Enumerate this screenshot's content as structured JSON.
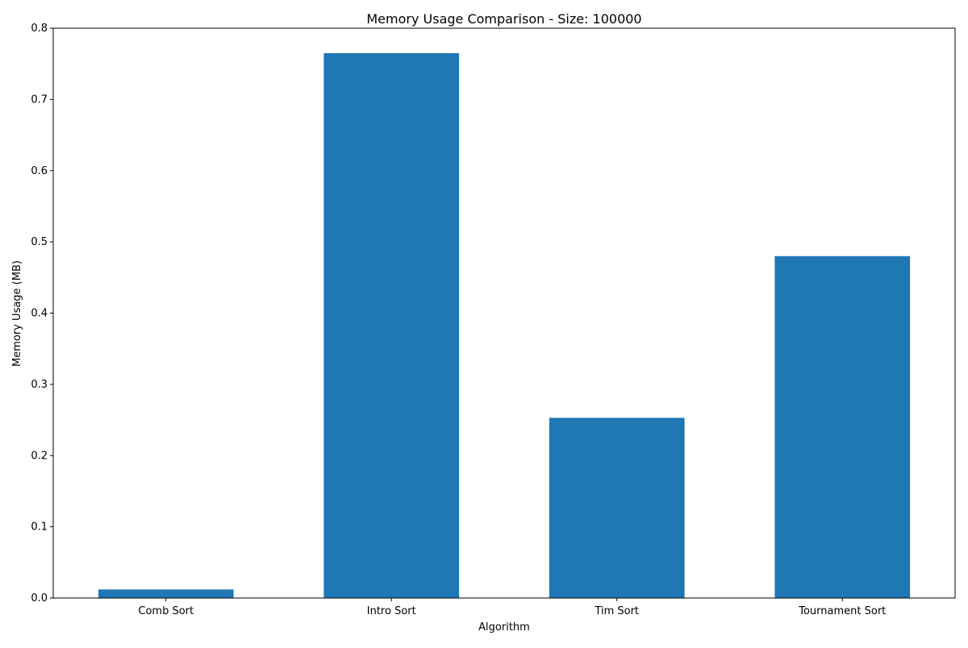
{
  "chart_data": {
    "type": "bar",
    "title": "Memory Usage Comparison - Size: 100000",
    "xlabel": "Algorithm",
    "ylabel": "Memory Usage (MB)",
    "categories": [
      "Comb Sort",
      "Intro Sort",
      "Tim Sort",
      "Tournament Sort"
    ],
    "values": [
      0.012,
      0.765,
      0.253,
      0.48
    ],
    "ylim": [
      0,
      0.8
    ],
    "yticks": [
      "0.0",
      "0.1",
      "0.2",
      "0.3",
      "0.4",
      "0.5",
      "0.6",
      "0.7",
      "0.8"
    ],
    "grid": false,
    "bar_color": "#1f77b4"
  }
}
